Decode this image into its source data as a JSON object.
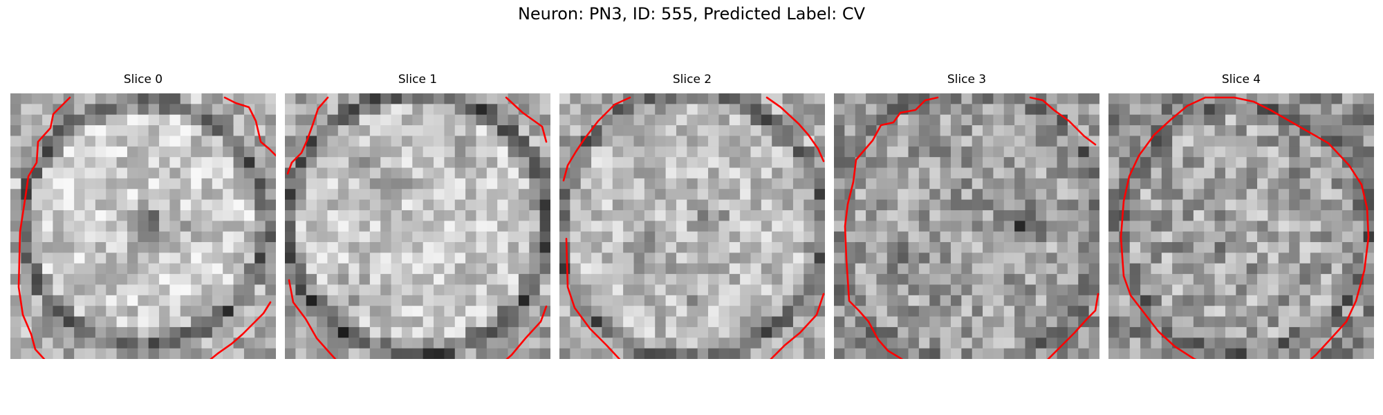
{
  "figure": {
    "title": "Neuron: PN3, ID: 555, Predicted Label: CV"
  },
  "colors": {
    "contour": "#ff0000"
  },
  "slices": [
    {
      "title": "Slice 0"
    },
    {
      "title": "Slice 1"
    },
    {
      "title": "Slice 2"
    },
    {
      "title": "Slice 3"
    },
    {
      "title": "Slice 4"
    }
  ]
}
